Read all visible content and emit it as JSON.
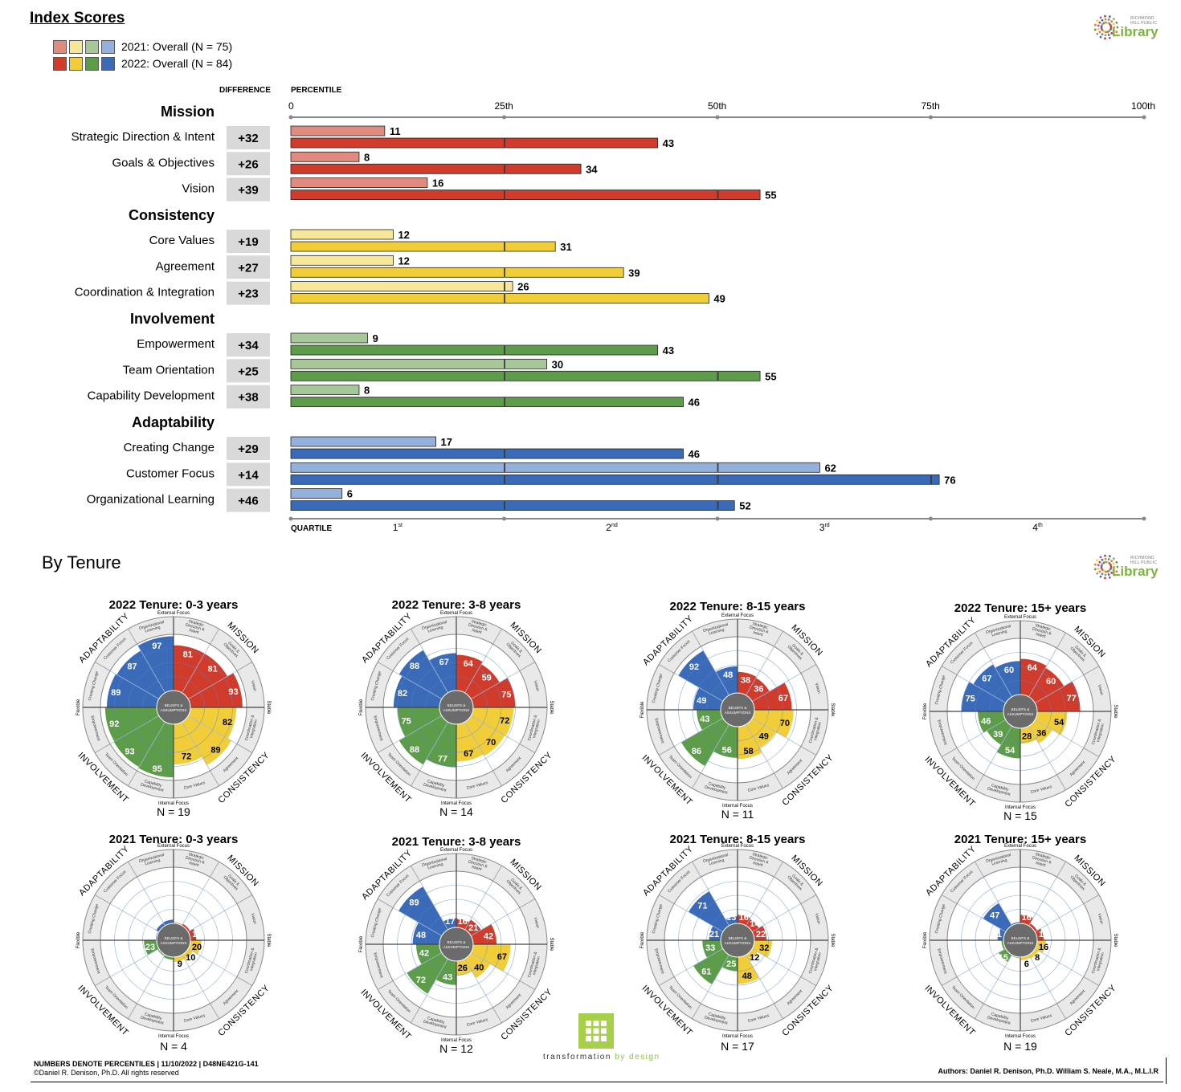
{
  "title": "Index Scores",
  "legend": [
    {
      "label": "2021: Overall (N = 75)",
      "colors": [
        "#e08a80",
        "#f7e79b",
        "#a7c79b",
        "#93b1dc"
      ]
    },
    {
      "label": "2022: Overall (N = 84)",
      "colors": [
        "#d13b2b",
        "#f1cd3a",
        "#5d9c48",
        "#3a6ab8"
      ]
    }
  ],
  "headers": {
    "difference": "DIFFERENCE",
    "percentile": "PERCENTILE",
    "quartile": "QUARTILE"
  },
  "colors": {
    "mission": {
      "y2021": "#e08a80",
      "y2022": "#d13b2b"
    },
    "consistency": {
      "y2021": "#f7e79b",
      "y2022": "#f1cd3a"
    },
    "involvement": {
      "y2021": "#a7c79b",
      "y2022": "#5d9c48"
    },
    "adaptability": {
      "y2021": "#93b1dc",
      "y2022": "#3a6ab8"
    }
  },
  "chart_data": [
    {
      "type": "bar",
      "orientation": "horizontal",
      "title": "Index Scores",
      "xlabel": "PERCENTILE",
      "xlim": [
        0,
        100
      ],
      "x_ticks": [
        "0",
        "25th",
        "50th",
        "75th",
        "100th"
      ],
      "quartile_labels": [
        {
          "base": "1",
          "sup": "st"
        },
        {
          "base": "2",
          "sup": "nd"
        },
        {
          "base": "3",
          "sup": "rd"
        },
        {
          "base": "4",
          "sup": "th"
        }
      ],
      "series": [
        {
          "name": "2021: Overall (N = 75)"
        },
        {
          "name": "2022: Overall (N = 84)"
        }
      ],
      "groups": [
        {
          "name": "Mission",
          "key": "mission",
          "rows": [
            {
              "label": "Strategic Direction & Intent",
              "difference": "+32",
              "y2021": 11,
              "y2022": 43
            },
            {
              "label": "Goals & Objectives",
              "difference": "+26",
              "y2021": 8,
              "y2022": 34
            },
            {
              "label": "Vision",
              "difference": "+39",
              "y2021": 16,
              "y2022": 55
            }
          ]
        },
        {
          "name": "Consistency",
          "key": "consistency",
          "rows": [
            {
              "label": "Core Values",
              "difference": "+19",
              "y2021": 12,
              "y2022": 31
            },
            {
              "label": "Agreement",
              "difference": "+27",
              "y2021": 12,
              "y2022": 39
            },
            {
              "label": "Coordination & Integration",
              "difference": "+23",
              "y2021": 26,
              "y2022": 49
            }
          ]
        },
        {
          "name": "Involvement",
          "key": "involvement",
          "rows": [
            {
              "label": "Empowerment",
              "difference": "+34",
              "y2021": 9,
              "y2022": 43
            },
            {
              "label": "Team Orientation",
              "difference": "+25",
              "y2021": 30,
              "y2022": 55
            },
            {
              "label": "Capability Development",
              "difference": "+38",
              "y2021": 8,
              "y2022": 46
            }
          ]
        },
        {
          "name": "Adaptability",
          "key": "adaptability",
          "rows": [
            {
              "label": "Creating Change",
              "difference": "+29",
              "y2021": 17,
              "y2022": 46
            },
            {
              "label": "Customer Focus",
              "difference": "+14",
              "y2021": 62,
              "y2022": 76
            },
            {
              "label": "Organizational Learning",
              "difference": "+46",
              "y2021": 6,
              "y2022": 52
            }
          ]
        }
      ]
    },
    {
      "type": "polar",
      "title": "By Tenure",
      "segment_order": [
        "Vision",
        "Goals & Objectives",
        "Strategic Direction & Intent",
        "Organizational Learning",
        "Customer Focus",
        "Creating Change",
        "Empowerment",
        "Team Orientation",
        "Capability Development",
        "Core Values",
        "Agreement",
        "Coordination & Integration"
      ],
      "panels": [
        {
          "title": "2022 Tenure: 0-3 years",
          "n": "N = 19",
          "values": [
            93,
            81,
            81,
            97,
            87,
            89,
            92,
            93,
            95,
            72,
            89,
            82
          ]
        },
        {
          "title": "2022 Tenure: 3-8 years",
          "n": "N = 14",
          "values": [
            75,
            59,
            64,
            67,
            88,
            82,
            75,
            88,
            77,
            67,
            70,
            72
          ]
        },
        {
          "title": "2022 Tenure: 8-15 years",
          "n": "N = 11",
          "values": [
            67,
            36,
            38,
            48,
            92,
            49,
            43,
            86,
            56,
            58,
            49,
            70
          ]
        },
        {
          "title": "2022 Tenure: 15+ years",
          "n": "N = 15",
          "values": [
            77,
            60,
            64,
            60,
            67,
            75,
            46,
            39,
            54,
            28,
            36,
            54
          ]
        },
        {
          "title": "2021 Tenure: 0-3 years",
          "n": "N = 4",
          "values": [
            11,
            4,
            2,
            7,
            6,
            2,
            23,
            3,
            5,
            9,
            10,
            20
          ]
        },
        {
          "title": "2021 Tenure: 3-8 years",
          "n": "N = 12",
          "values": [
            42,
            21,
            16,
            17,
            89,
            48,
            42,
            72,
            43,
            26,
            40,
            67
          ]
        },
        {
          "title": "2021 Tenure: 8-15 years",
          "n": "N = 17",
          "values": [
            22,
            14,
            16,
            13,
            71,
            21,
            33,
            61,
            25,
            48,
            12,
            32
          ]
        },
        {
          "title": "2021 Tenure: 15+ years",
          "n": "N = 19",
          "values": [
            12,
            5,
            16,
            3,
            47,
            11,
            4,
            15,
            2,
            6,
            8,
            16
          ]
        }
      ]
    }
  ],
  "polar_labels": {
    "traits": [
      "MISSION",
      "ADAPTABILITY",
      "INVOLVEMENT",
      "CONSISTENCY"
    ],
    "axes": {
      "top": "External Focus",
      "bottom": "Internal Focus",
      "left": "Flexible",
      "right": "Stable"
    },
    "center": [
      "BELIEFS &",
      "ASSUMPTIONS"
    ],
    "segments": [
      [
        "Vision"
      ],
      [
        "Goals &",
        "Objectives"
      ],
      [
        "Strategic",
        "Direction &",
        "Intent"
      ],
      [
        "Organizational",
        "Learning"
      ],
      [
        "Customer Focus"
      ],
      [
        "Creating Change"
      ],
      [
        "Empowerment"
      ],
      [
        "Team Orientation"
      ],
      [
        "Capability",
        "Development"
      ],
      [
        "Core Values"
      ],
      [
        "Agreement"
      ],
      [
        "Coordination &",
        "Integration"
      ]
    ]
  },
  "logo": {
    "word": "Library",
    "small": "RICHMOND HILL PUBLIC"
  },
  "footer": {
    "note": "NUMBERS DENOTE PERCENTILES  |  11/10/2022  |  D48NE421G-141",
    "copyright": "©Daniel R. Denison, Ph.D. All rights reserved",
    "authors": "Authors: Daniel R. Denison, Ph.D. William S. Neale, M.A., M.L.I.R",
    "brand_a": "transformation ",
    "brand_b": "by design"
  }
}
